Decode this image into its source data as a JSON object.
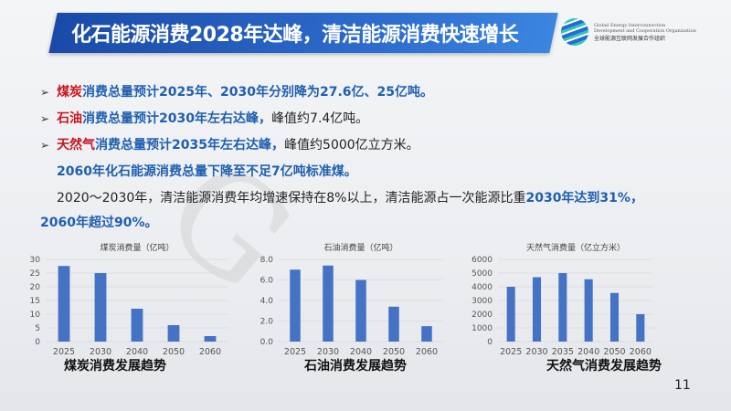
{
  "header": {
    "title": "化石能源消费2028年达峰，清洁能源消费快速增长",
    "logo": {
      "en1": "Global Energy Interconnection",
      "en2": "Development and Cooperation Organization",
      "cn": "全球能源互联网发展合作组织"
    }
  },
  "bullets": [
    {
      "key": "煤炭",
      "text": "消费总量预计2025年、2030年分别降为27.6亿、25亿吨。"
    },
    {
      "key": "石油",
      "text": "消费总量预计2030年左右达峰，",
      "tail": "峰值约7.4亿吨。"
    },
    {
      "key": "天然气",
      "text": "消费总量预计2035年左右达峰，",
      "tail": "峰值约5000亿立方米。"
    }
  ],
  "summary": "2060年化石能源消费总量下降至不足7亿吨标准煤。",
  "paragraph": {
    "part1": "2020～2030年，清洁能源消费年均增速保持在8%以上，清洁能源占一次能源比重",
    "highlight1": "2030年达到31%，",
    "highlight2": "2060年超过90%。"
  },
  "page_number": "11",
  "watermark": "GEIDCO",
  "colors": {
    "bar": "#4472c4",
    "banner": "#1f56b8",
    "key_red": "#c8141e",
    "highlight_blue": "#1f5fb0"
  },
  "chart_data": [
    {
      "type": "bar",
      "title": "煤炭消费量（亿吨）",
      "caption": "煤炭消费发展趋势",
      "categories": [
        "2025",
        "2030",
        "2040",
        "2050",
        "2060"
      ],
      "values": [
        27.6,
        25,
        12,
        6,
        2
      ],
      "ylim": [
        0,
        30
      ],
      "yticks": [
        "0",
        "5",
        "10",
        "15",
        "20",
        "25",
        "30"
      ],
      "grid": true
    },
    {
      "type": "bar",
      "title": "石油消费量（亿吨）",
      "caption": "石油消费发展趋势",
      "categories": [
        "2025",
        "2030",
        "2040",
        "2050",
        "2060"
      ],
      "values": [
        7.0,
        7.4,
        6.0,
        3.4,
        1.5
      ],
      "ylim": [
        0,
        8
      ],
      "yticks": [
        "0.0",
        "2.0",
        "4.0",
        "6.0",
        "8.0"
      ],
      "grid": true
    },
    {
      "type": "bar",
      "title": "天然气消费量（亿立方米）",
      "caption": "天然气消费发展趋势",
      "categories": [
        "2025",
        "2030",
        "2035",
        "2040",
        "2050",
        "2060"
      ],
      "values": [
        4000,
        4700,
        5000,
        4550,
        3550,
        2000
      ],
      "ylim": [
        0,
        6000
      ],
      "yticks": [
        "0",
        "1000",
        "2000",
        "3000",
        "4000",
        "5000",
        "6000"
      ],
      "grid": true
    }
  ]
}
